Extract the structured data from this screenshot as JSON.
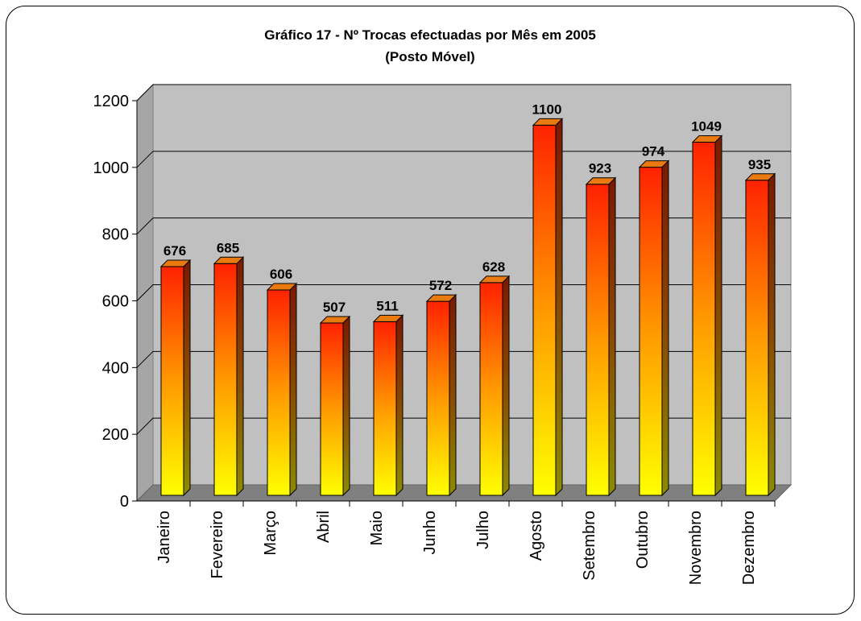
{
  "chart_data": {
    "type": "bar",
    "title": "Gráfico 17 - Nº Trocas efectuadas por Mês em 2005",
    "subtitle": "(Posto Móvel)",
    "categories": [
      "Janeiro",
      "Fevereiro",
      "Março",
      "Abril",
      "Maio",
      "Junho",
      "Julho",
      "Agosto",
      "Setembro",
      "Outubro",
      "Novembro",
      "Dezembro"
    ],
    "values": [
      676,
      685,
      606,
      507,
      511,
      572,
      628,
      1100,
      923,
      974,
      1049,
      935
    ],
    "ylim": [
      0,
      1200
    ],
    "yticks": [
      0,
      200,
      400,
      600,
      800,
      1000,
      1200
    ],
    "data_labels": true,
    "grid": true,
    "legend": "none",
    "colors": {
      "bar_top": "#ff2200",
      "bar_bottom": "#ffff00",
      "wall": "#c0c0c0",
      "floor": "#808080",
      "side_wall": "#a6a6a6"
    }
  }
}
